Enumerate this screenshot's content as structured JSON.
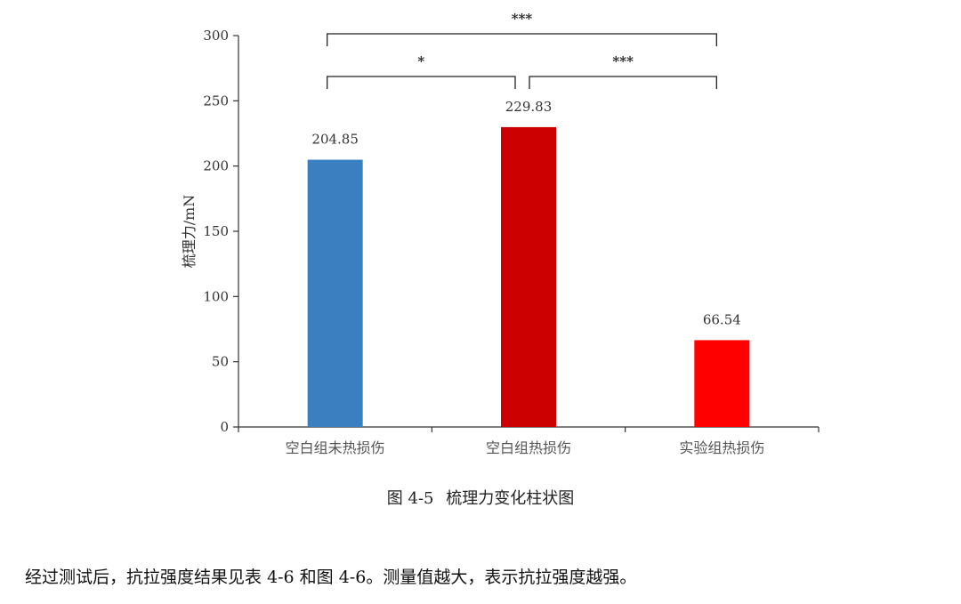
{
  "chart_data": {
    "type": "bar",
    "categories": [
      "空白组未热损伤",
      "空白组热损伤",
      "实验组热损伤"
    ],
    "values": [
      204.85,
      229.83,
      66.54
    ],
    "value_labels": [
      "204.85",
      "229.83",
      "66.54"
    ],
    "ylabel": "梳理力/mN",
    "ylim": [
      0,
      300
    ],
    "yticks": [
      0,
      50,
      100,
      150,
      200,
      250,
      300
    ],
    "colors": [
      "#3b7fc1",
      "#cc0000",
      "#ff0000"
    ],
    "grid": false,
    "significance": [
      {
        "from": 0,
        "to": 2,
        "label": "***"
      },
      {
        "from": 0,
        "to": 1,
        "label": "*"
      },
      {
        "from": 1,
        "to": 2,
        "label": "***"
      }
    ]
  },
  "caption": {
    "figure_number": "图 4-5",
    "title": "梳理力变化柱状图"
  },
  "paragraph": "经过测试后，抗拉强度结果见表 4-6 和图 4-6。测量值越大，表示抗拉强度越强。"
}
